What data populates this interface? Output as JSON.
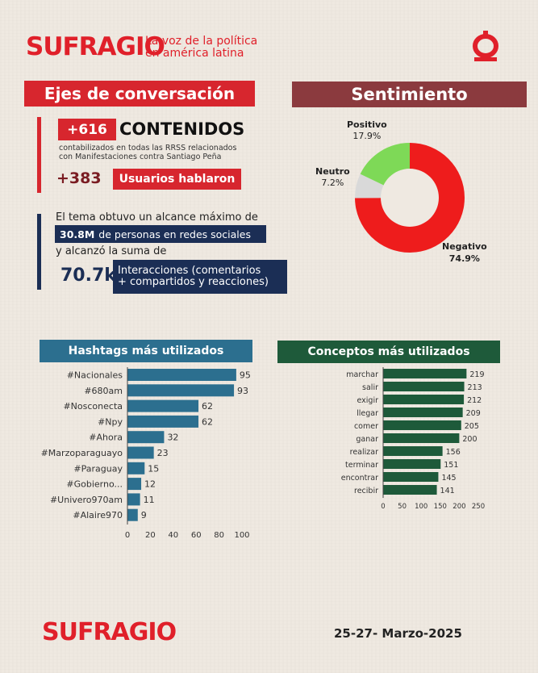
{
  "header": {
    "logo": "SUFRAGIO",
    "tagline_line1": "La voz de la política",
    "tagline_line2": "en américa latina"
  },
  "ejes": {
    "title": "Ejes de conversación",
    "contenidos_count": "+616",
    "contenidos_label": "CONTENIDOS",
    "contenidos_desc1": "contabilizados en todas las RRSS relacionados",
    "contenidos_desc2": "con Manifestaciones contra Santiago Peña",
    "usuarios_count": "+383",
    "usuarios_label": "Usuarios hablaron",
    "alcance_text1": "El tema obtuvo un alcance máximo de",
    "alcance_value": "30.8M",
    "alcance_text2": "de personas en redes sociales",
    "alcance_text3": "y alcanzó la suma de",
    "interacciones_value": "70.7k",
    "interacciones_label1": "Interacciones (comentarios",
    "interacciones_label2": "+ compartidos y reacciones)"
  },
  "sentimiento": {
    "title": "Sentimiento",
    "colors": {
      "positivo": "#7ed957",
      "neutro": "#d9d9d9",
      "negativo": "#ee1c1c"
    }
  },
  "hashtags_title": "Hashtags más utilizados",
  "conceptos_title": "Conceptos más utilizados",
  "chart_data": [
    {
      "type": "pie",
      "categories": [
        "Positivo",
        "Neutro",
        "Negativo"
      ],
      "values": [
        17.9,
        7.2,
        74.9
      ],
      "value_labels": [
        "17.9%",
        "7.2%",
        "74.9%"
      ]
    },
    {
      "type": "bar",
      "orientation": "horizontal",
      "categories": [
        "#Nacionales",
        "#680am",
        "#Nosconecta",
        "#Npy",
        "#Ahora",
        "#Marzoparaguayo",
        "#Paraguay",
        "#Gobierno...",
        "#Univero970am",
        "#Alaire970"
      ],
      "values": [
        95,
        93,
        62,
        62,
        32,
        23,
        15,
        12,
        11,
        9
      ],
      "xlim": [
        0,
        100
      ],
      "xticks": [
        0,
        20,
        40,
        60,
        80,
        100
      ],
      "color": "#2c6f8f"
    },
    {
      "type": "bar",
      "orientation": "horizontal",
      "categories": [
        "marchar",
        "salir",
        "exigir",
        "llegar",
        "comer",
        "ganar",
        "realizar",
        "terminar",
        "encontrar",
        "recibir"
      ],
      "values": [
        219,
        213,
        212,
        209,
        205,
        200,
        156,
        151,
        145,
        141
      ],
      "xlim": [
        0,
        250
      ],
      "xticks": [
        0,
        50,
        100,
        150,
        200,
        250
      ],
      "color": "#1e5a3a"
    }
  ],
  "footer": {
    "logo": "SUFRAGIO",
    "date": "25-27- Marzo-2025"
  }
}
